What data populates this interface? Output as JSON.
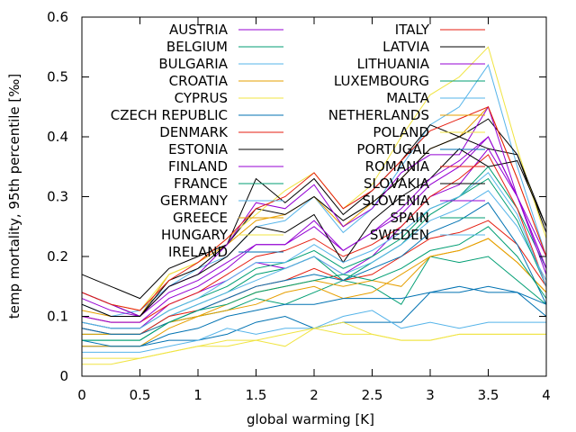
{
  "chart_data": {
    "type": "line",
    "xlabel": "global warming [K]",
    "ylabel": "temp mortality, 95th percentile [‰]",
    "xlim": [
      0,
      4
    ],
    "ylim": [
      0,
      0.6
    ],
    "xticks": [
      "0",
      "0.5",
      "1",
      "1.5",
      "2",
      "2.5",
      "3",
      "3.5",
      "4"
    ],
    "yticks": [
      "0",
      "0.1",
      "0.2",
      "0.3",
      "0.4",
      "0.5",
      "0.6"
    ],
    "grid": false,
    "legend_position": "top, two columns",
    "x": [
      0,
      0.25,
      0.5,
      0.75,
      1,
      1.25,
      1.5,
      1.75,
      2,
      2.25,
      2.5,
      2.75,
      3,
      3.25,
      3.5,
      3.75,
      4
    ],
    "series": [
      {
        "name": "AUSTRIA",
        "color": "#9400d3",
        "values": [
          0.09,
          0.08,
          0.08,
          0.12,
          0.14,
          0.16,
          0.19,
          0.18,
          0.2,
          0.17,
          0.2,
          0.25,
          0.3,
          0.32,
          0.38,
          0.3,
          0.2
        ]
      },
      {
        "name": "BELGIUM",
        "color": "#009e73",
        "values": [
          0.07,
          0.07,
          0.07,
          0.1,
          0.12,
          0.14,
          0.17,
          0.18,
          0.2,
          0.16,
          0.19,
          0.22,
          0.27,
          0.3,
          0.35,
          0.28,
          0.18
        ]
      },
      {
        "name": "BULGARIA",
        "color": "#56b4e9",
        "values": [
          0.12,
          0.1,
          0.11,
          0.15,
          0.18,
          0.2,
          0.25,
          0.26,
          0.3,
          0.24,
          0.28,
          0.35,
          0.42,
          0.45,
          0.52,
          0.35,
          0.2
        ]
      },
      {
        "name": "CROATIA",
        "color": "#e69f00",
        "values": [
          0.11,
          0.1,
          0.1,
          0.17,
          0.19,
          0.22,
          0.26,
          0.27,
          0.3,
          0.25,
          0.29,
          0.33,
          0.38,
          0.4,
          0.45,
          0.33,
          0.2
        ]
      },
      {
        "name": "CYPRUS",
        "color": "#f0e442",
        "values": [
          0.03,
          0.03,
          0.03,
          0.04,
          0.05,
          0.05,
          0.06,
          0.05,
          0.08,
          0.07,
          0.07,
          0.06,
          0.06,
          0.07,
          0.07,
          0.07,
          0.07
        ]
      },
      {
        "name": "CZECH REPUBLIC",
        "color": "#0072b2",
        "values": [
          0.05,
          0.05,
          0.05,
          0.06,
          0.06,
          0.07,
          0.09,
          0.1,
          0.08,
          0.09,
          0.09,
          0.09,
          0.14,
          0.14,
          0.15,
          0.14,
          0.1
        ]
      },
      {
        "name": "DENMARK",
        "color": "#e51e10",
        "values": [
          0.1,
          0.09,
          0.09,
          0.12,
          0.14,
          0.17,
          0.2,
          0.21,
          0.23,
          0.2,
          0.22,
          0.25,
          0.3,
          0.33,
          0.37,
          0.28,
          0.15
        ]
      },
      {
        "name": "ESTONIA",
        "color": "#000000",
        "values": [
          0.17,
          0.15,
          0.13,
          0.18,
          0.2,
          0.22,
          0.28,
          0.27,
          0.3,
          0.26,
          0.29,
          0.33,
          0.38,
          0.4,
          0.43,
          0.37,
          0.24
        ]
      },
      {
        "name": "FINLAND",
        "color": "#9400d3",
        "values": [
          0.13,
          0.11,
          0.1,
          0.14,
          0.16,
          0.19,
          0.22,
          0.22,
          0.25,
          0.21,
          0.24,
          0.27,
          0.32,
          0.35,
          0.4,
          0.3,
          0.17
        ]
      },
      {
        "name": "FRANCE",
        "color": "#009e73",
        "values": [
          0.06,
          0.06,
          0.06,
          0.09,
          0.1,
          0.11,
          0.13,
          0.12,
          0.14,
          0.16,
          0.15,
          0.12,
          0.2,
          0.19,
          0.2,
          0.16,
          0.12
        ]
      },
      {
        "name": "GERMANY",
        "color": "#56b4e9",
        "values": [
          0.08,
          0.07,
          0.07,
          0.1,
          0.12,
          0.14,
          0.16,
          0.18,
          0.2,
          0.17,
          0.19,
          0.22,
          0.26,
          0.28,
          0.31,
          0.25,
          0.16
        ]
      },
      {
        "name": "GREECE",
        "color": "#e69f00",
        "values": [
          0.05,
          0.05,
          0.05,
          0.08,
          0.1,
          0.11,
          0.12,
          0.14,
          0.15,
          0.13,
          0.14,
          0.17,
          0.2,
          0.21,
          0.23,
          0.19,
          0.14
        ]
      },
      {
        "name": "HUNGARY",
        "color": "#f0e442",
        "values": [
          0.14,
          0.12,
          0.11,
          0.17,
          0.19,
          0.23,
          0.27,
          0.31,
          0.34,
          0.28,
          0.32,
          0.4,
          0.47,
          0.5,
          0.55,
          0.38,
          0.23
        ]
      },
      {
        "name": "IRELAND",
        "color": "#0072b2",
        "values": [
          0.06,
          0.05,
          0.05,
          0.07,
          0.08,
          0.1,
          0.11,
          0.12,
          0.12,
          0.13,
          0.13,
          0.13,
          0.14,
          0.15,
          0.14,
          0.14,
          0.12
        ]
      },
      {
        "name": "ITALY",
        "color": "#e51e10",
        "values": [
          0.08,
          0.07,
          0.07,
          0.1,
          0.11,
          0.13,
          0.15,
          0.16,
          0.18,
          0.16,
          0.17,
          0.2,
          0.23,
          0.24,
          0.26,
          0.22,
          0.15
        ]
      },
      {
        "name": "LATVIA",
        "color": "#000000",
        "values": [
          0.14,
          0.12,
          0.1,
          0.16,
          0.18,
          0.22,
          0.33,
          0.29,
          0.33,
          0.27,
          0.31,
          0.36,
          0.42,
          0.4,
          0.38,
          0.37,
          0.25
        ]
      },
      {
        "name": "LITHUANIA",
        "color": "#9400d3",
        "values": [
          0.14,
          0.12,
          0.1,
          0.15,
          0.17,
          0.22,
          0.29,
          0.28,
          0.32,
          0.25,
          0.28,
          0.34,
          0.37,
          0.37,
          0.45,
          0.3,
          0.18
        ]
      },
      {
        "name": "LUXEMBOURG",
        "color": "#009e73",
        "values": [
          0.09,
          0.08,
          0.08,
          0.11,
          0.13,
          0.15,
          0.18,
          0.19,
          0.21,
          0.18,
          0.2,
          0.23,
          0.28,
          0.3,
          0.33,
          0.26,
          0.15
        ]
      },
      {
        "name": "MALTA",
        "color": "#56b4e9",
        "values": [
          0.04,
          0.04,
          0.04,
          0.05,
          0.06,
          0.08,
          0.07,
          0.08,
          0.08,
          0.1,
          0.11,
          0.08,
          0.09,
          0.08,
          0.09,
          0.09,
          0.09
        ]
      },
      {
        "name": "NETHERLANDS",
        "color": "#e69f00",
        "values": [
          0.07,
          0.07,
          0.07,
          0.09,
          0.1,
          0.12,
          0.14,
          0.15,
          0.16,
          0.15,
          0.16,
          0.15,
          0.2,
          0.21,
          0.23,
          0.19,
          0.14
        ]
      },
      {
        "name": "POLAND",
        "color": "#f0e442",
        "values": [
          0.02,
          0.02,
          0.03,
          0.04,
          0.05,
          0.06,
          0.06,
          0.07,
          0.08,
          0.09,
          0.07,
          0.06,
          0.06,
          0.07,
          0.07,
          0.07,
          0.07
        ]
      },
      {
        "name": "PORTUGAL",
        "color": "#0072b2",
        "values": [
          0.08,
          0.07,
          0.07,
          0.09,
          0.11,
          0.13,
          0.15,
          0.16,
          0.17,
          0.16,
          0.18,
          0.2,
          0.24,
          0.26,
          0.29,
          0.22,
          0.12
        ]
      },
      {
        "name": "ROMANIA",
        "color": "#e51e10",
        "values": [
          0.14,
          0.12,
          0.11,
          0.16,
          0.19,
          0.23,
          0.28,
          0.3,
          0.34,
          0.28,
          0.31,
          0.36,
          0.41,
          0.43,
          0.45,
          0.33,
          0.2
        ]
      },
      {
        "name": "SLOVAKIA",
        "color": "#000000",
        "values": [
          0.12,
          0.1,
          0.1,
          0.15,
          0.17,
          0.2,
          0.25,
          0.24,
          0.27,
          0.19,
          0.26,
          0.3,
          0.33,
          0.38,
          0.35,
          0.36,
          0.25
        ]
      },
      {
        "name": "SLOVENIA",
        "color": "#9400d3",
        "values": [
          0.1,
          0.09,
          0.09,
          0.13,
          0.15,
          0.18,
          0.22,
          0.22,
          0.26,
          0.21,
          0.24,
          0.28,
          0.33,
          0.36,
          0.4,
          0.3,
          0.18
        ]
      },
      {
        "name": "SPAIN",
        "color": "#009e73",
        "values": [
          0.06,
          0.06,
          0.06,
          0.09,
          0.11,
          0.12,
          0.14,
          0.15,
          0.16,
          0.17,
          0.16,
          0.18,
          0.21,
          0.22,
          0.25,
          0.2,
          0.13
        ]
      },
      {
        "name": "SWEDEN",
        "color": "#56b4e9",
        "values": [
          0.09,
          0.08,
          0.08,
          0.11,
          0.13,
          0.16,
          0.19,
          0.19,
          0.22,
          0.19,
          0.21,
          0.24,
          0.28,
          0.3,
          0.34,
          0.27,
          0.15
        ]
      }
    ]
  }
}
